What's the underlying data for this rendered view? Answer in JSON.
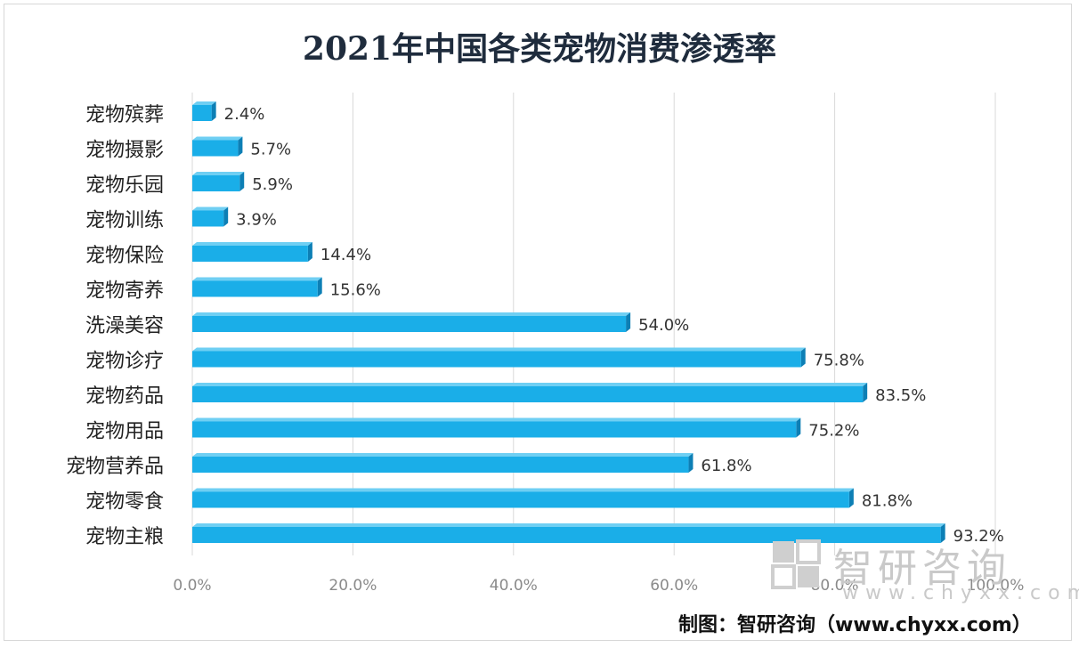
{
  "chart_data": {
    "type": "bar",
    "orientation": "horizontal",
    "title": "2021年中国各类宠物消费渗透率",
    "categories": [
      "宠物殡葬",
      "宠物摄影",
      "宠物乐园",
      "宠物训练",
      "宠物保险",
      "宠物寄养",
      "洗澡美容",
      "宠物诊疗",
      "宠物药品",
      "宠物用品",
      "宠物营养品",
      "宠物零食",
      "宠物主粮"
    ],
    "values": [
      2.4,
      5.7,
      5.9,
      3.9,
      14.4,
      15.6,
      54.0,
      75.8,
      83.5,
      75.2,
      61.8,
      81.8,
      93.2
    ],
    "data_labels": [
      "2.4%",
      "5.7%",
      "5.9%",
      "3.9%",
      "14.4%",
      "15.6%",
      "54.0%",
      "75.8%",
      "83.5%",
      "75.2%",
      "61.8%",
      "81.8%",
      "93.2%"
    ],
    "xlim": [
      0,
      100
    ],
    "xticks": [
      0,
      20,
      40,
      60,
      80,
      100
    ],
    "xtick_labels": [
      "0.0%",
      "20.0%",
      "40.0%",
      "60.0%",
      "80.0%",
      "100.0%"
    ],
    "xlabel": "",
    "ylabel": "",
    "grid": true,
    "legend": "none",
    "bar_color": "#1aaee8",
    "bar_color_dark": "#0d7fb5"
  },
  "watermark": {
    "brand": "智研咨询",
    "url": "www.chyxx.com"
  },
  "credit": "制图：智研咨询（www.chyxx.com）"
}
